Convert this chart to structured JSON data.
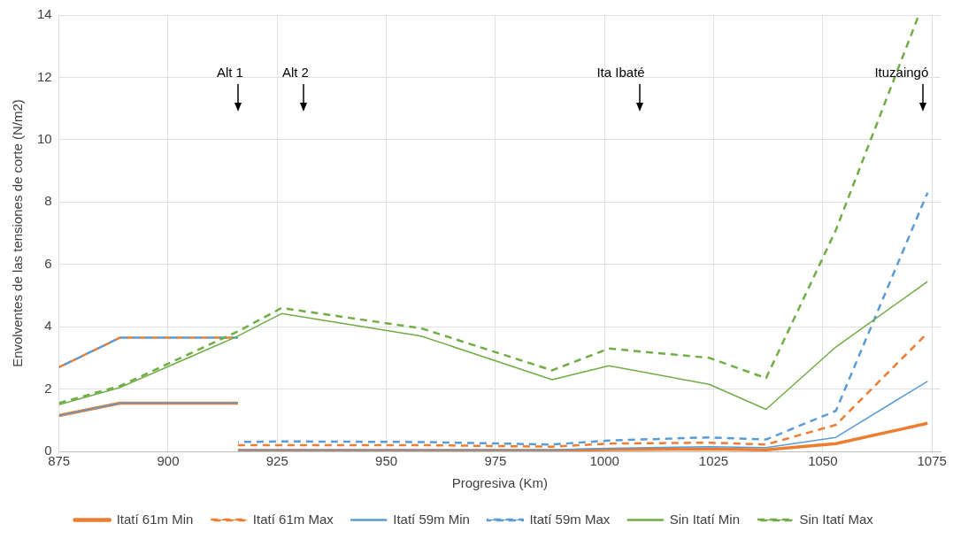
{
  "chart_data": {
    "type": "line",
    "xlabel": "Progresiva (Km)",
    "ylabel": "Envolventes de las tensiones de corte (N/m2)",
    "xlim": [
      875,
      1077
    ],
    "xticks": [
      875,
      900,
      925,
      950,
      975,
      1000,
      1025,
      1050,
      1075
    ],
    "ylim": [
      0,
      14
    ],
    "yticks": [
      0,
      2,
      4,
      6,
      8,
      10,
      12,
      14
    ],
    "grid": true,
    "legend": "bottom",
    "marker": "none",
    "ref_lines": [
      {
        "axis": "x",
        "value": 916,
        "label": "Alt 1"
      },
      {
        "axis": "x",
        "value": 931,
        "label": "Alt 2"
      },
      {
        "axis": "x",
        "value": 1008,
        "label": "Ita Ibaté"
      },
      {
        "axis": "x",
        "value": 1073,
        "label": "Ituzaingó"
      }
    ],
    "series": [
      {
        "name": "Itatí 61m Min",
        "color": "#ed7d31",
        "line_style": "solid",
        "x": [
          875,
          889,
          916,
          null,
          916,
          926,
          958,
          988,
          1001,
          1024,
          1037,
          1053,
          1074
        ],
        "values": [
          1.15,
          1.55,
          1.55,
          null,
          0.03,
          0.03,
          0.03,
          0.03,
          0.06,
          0.08,
          0.05,
          0.25,
          0.9
        ]
      },
      {
        "name": "Itatí 61m Max",
        "color": "#ed7d31",
        "line_style": "dashed",
        "x": [
          875,
          889,
          916,
          null,
          916,
          926,
          958,
          988,
          1001,
          1024,
          1037,
          1053,
          1074
        ],
        "values": [
          2.7,
          3.65,
          3.65,
          null,
          0.2,
          0.2,
          0.2,
          0.15,
          0.25,
          0.28,
          0.22,
          0.85,
          3.8
        ]
      },
      {
        "name": "Itatí 59m Min",
        "color": "#5b9bd5",
        "line_style": "solid",
        "x": [
          875,
          889,
          916,
          null,
          916,
          926,
          958,
          988,
          1001,
          1024,
          1037,
          1053,
          1074
        ],
        "values": [
          1.15,
          1.55,
          1.55,
          null,
          0.05,
          0.05,
          0.05,
          0.05,
          0.1,
          0.15,
          0.12,
          0.45,
          2.25
        ]
      },
      {
        "name": "Itatí 59m Max",
        "color": "#5b9bd5",
        "line_style": "dashed",
        "x": [
          875,
          889,
          916,
          null,
          916,
          926,
          958,
          988,
          1001,
          1024,
          1037,
          1053,
          1074
        ],
        "values": [
          2.7,
          3.65,
          3.65,
          null,
          0.3,
          0.32,
          0.3,
          0.22,
          0.35,
          0.45,
          0.38,
          1.3,
          8.3
        ]
      },
      {
        "name": "Sin Itatí Min",
        "color": "#70ad47",
        "line_style": "solid",
        "x": [
          875,
          889,
          916,
          926,
          958,
          988,
          1001,
          1024,
          1037,
          1053,
          1074
        ],
        "values": [
          1.5,
          2.05,
          3.7,
          4.42,
          3.7,
          2.3,
          2.75,
          2.15,
          1.35,
          3.35,
          5.45
        ]
      },
      {
        "name": "Sin Itatí Max",
        "color": "#70ad47",
        "line_style": "dashed",
        "x": [
          875,
          889,
          916,
          926,
          958,
          988,
          1001,
          1024,
          1037,
          1053,
          1072
        ],
        "values": [
          1.55,
          2.1,
          3.85,
          4.6,
          3.95,
          2.6,
          3.3,
          3.0,
          2.35,
          7.1,
          14
        ]
      }
    ]
  }
}
